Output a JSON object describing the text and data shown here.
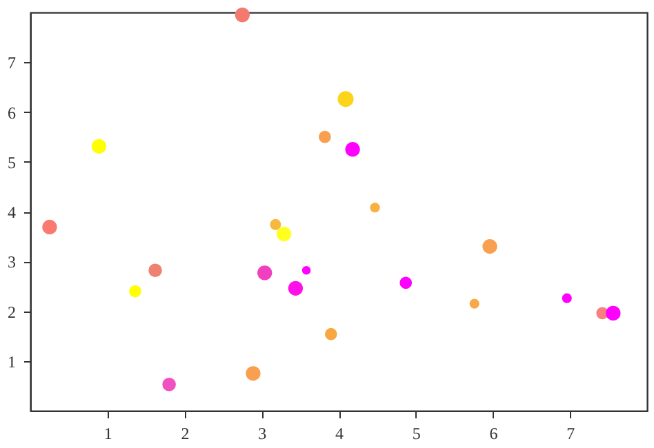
{
  "chart_data": {
    "type": "bubble",
    "x": [
      0.25,
      0.89,
      2.75,
      4.09,
      3.82,
      4.18,
      4.47,
      3.18,
      3.29,
      5.96,
      1.62,
      3.04,
      3.58,
      3.44,
      4.87,
      1.36,
      5.76,
      6.96,
      7.42,
      7.56,
      3.9,
      2.89,
      1.8
    ],
    "values": [
      3.69,
      5.31,
      7.95,
      6.26,
      5.5,
      5.25,
      4.08,
      3.74,
      3.55,
      3.3,
      2.82,
      2.77,
      2.82,
      2.46,
      2.57,
      2.4,
      2.15,
      2.26,
      1.96,
      1.96,
      1.54,
      0.75,
      0.53
    ],
    "sizes": [
      0.85,
      0.85,
      0.85,
      1,
      0.59,
      0.85,
      0.38,
      0.48,
      0.85,
      0.85,
      0.72,
      0.85,
      0.29,
      0.85,
      0.59,
      0.59,
      0.38,
      0.38,
      0.59,
      0.85,
      0.59,
      0.85,
      0.72
    ],
    "colors": [
      "#f87a70",
      "#ffff00",
      "#f47a70",
      "#fcd41c",
      "#f8a050",
      "#ff00ff",
      "#f8b040",
      "#f8b840",
      "#ffff20",
      "#f8a050",
      "#f08070",
      "#f040c0",
      "#ff00ff",
      "#ff10e8",
      "#ff00ff",
      "#ffff00",
      "#f8a848",
      "#ff00ff",
      "#f88080",
      "#ff00ff",
      "#f8a840",
      "#f8a050",
      "#f050c0"
    ],
    "xlim": [
      0,
      8
    ],
    "ylim": [
      0,
      8
    ],
    "xticks": [
      1,
      2,
      3,
      4,
      5,
      6,
      7
    ],
    "yticks": [
      1,
      2,
      3,
      4,
      5,
      6,
      7
    ],
    "grid": false,
    "legend": false
  }
}
